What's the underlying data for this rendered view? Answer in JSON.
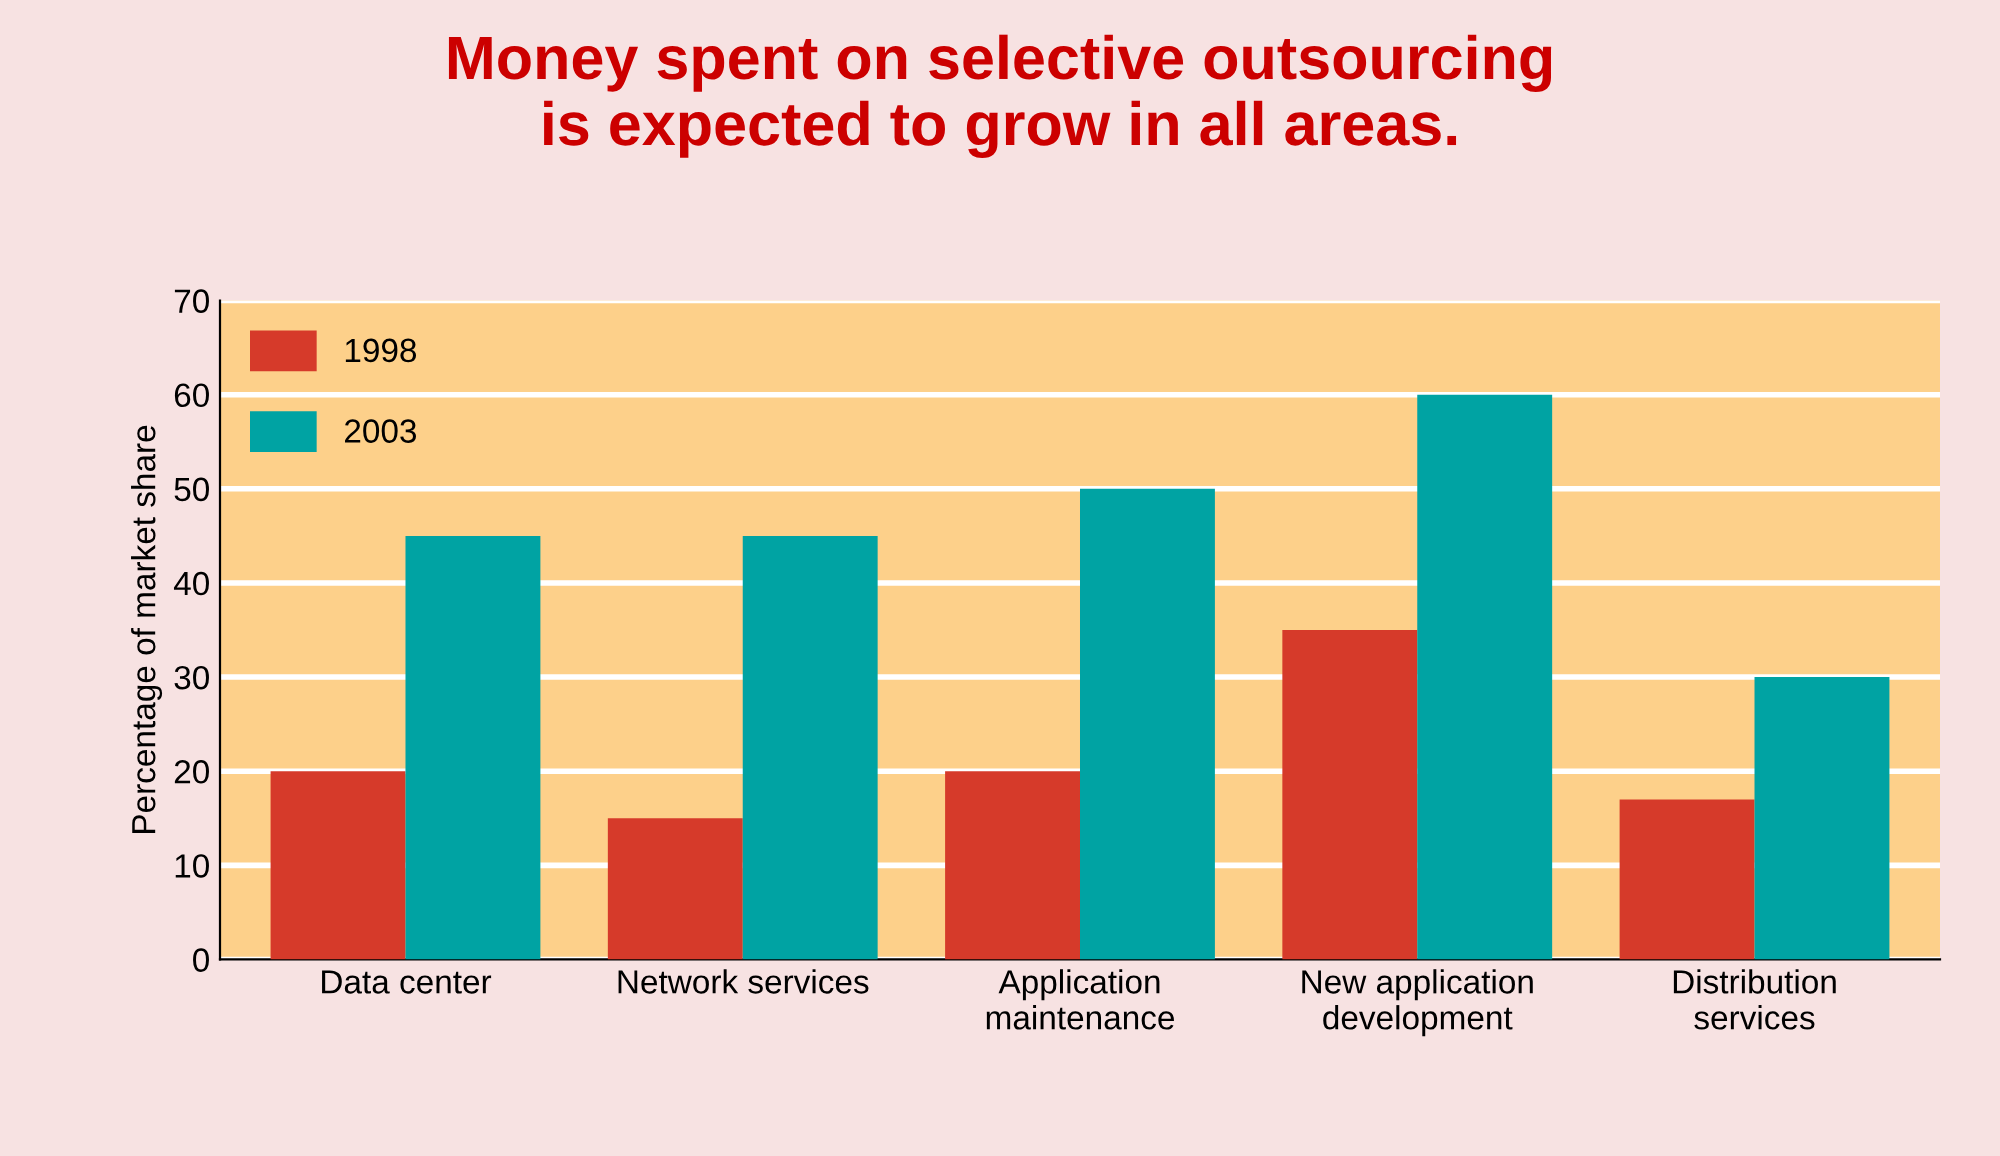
{
  "chart_data": {
    "type": "bar",
    "title": "Money spent on selective outsourcing\nis expected to grow in all areas.",
    "ylabel": "Percentage of market share",
    "categories": [
      "Data center",
      "Network services",
      "Application\nmaintenance",
      "New application\ndevelopment",
      "Distribution\nservices"
    ],
    "series": [
      {
        "name": "1998",
        "color": "#d63a2a",
        "values": [
          20,
          15,
          20,
          35,
          17
        ]
      },
      {
        "name": "2003",
        "color": "#00a3a3",
        "values": [
          45,
          45,
          50,
          60,
          30
        ]
      }
    ],
    "ylim": [
      0,
      70
    ],
    "yticks": [
      0,
      10,
      20,
      30,
      40,
      50,
      60,
      70
    ],
    "grid": "y",
    "legend": "top left"
  }
}
